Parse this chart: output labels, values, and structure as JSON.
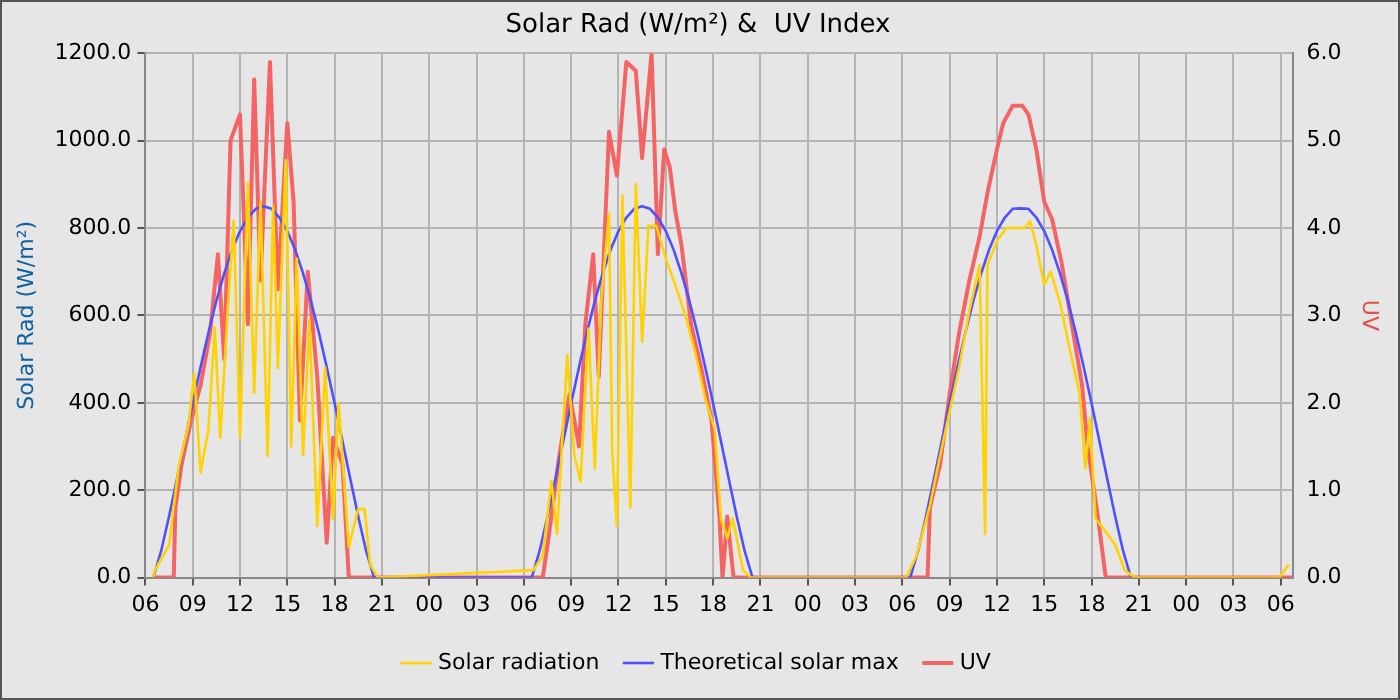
{
  "chart_data": {
    "type": "line",
    "title": "Solar Rad (W/m²) &  UV Index",
    "ylabel": "Solar Rad (W/m²)",
    "y2label": "UV",
    "xlim": [
      6,
      78.75
    ],
    "xticks": [
      {
        "value": 6,
        "label": "06"
      },
      {
        "value": 9,
        "label": "09"
      },
      {
        "value": 12,
        "label": "12"
      },
      {
        "value": 15,
        "label": "15"
      },
      {
        "value": 18,
        "label": "18"
      },
      {
        "value": 21,
        "label": "21"
      },
      {
        "value": 24,
        "label": "00"
      },
      {
        "value": 27,
        "label": "03"
      },
      {
        "value": 30,
        "label": "06"
      },
      {
        "value": 33,
        "label": "09"
      },
      {
        "value": 36,
        "label": "12"
      },
      {
        "value": 39,
        "label": "15"
      },
      {
        "value": 42,
        "label": "18"
      },
      {
        "value": 45,
        "label": "21"
      },
      {
        "value": 48,
        "label": "00"
      },
      {
        "value": 51,
        "label": "03"
      },
      {
        "value": 54,
        "label": "06"
      },
      {
        "value": 57,
        "label": "09"
      },
      {
        "value": 60,
        "label": "12"
      },
      {
        "value": 63,
        "label": "15"
      },
      {
        "value": 66,
        "label": "18"
      },
      {
        "value": 69,
        "label": "21"
      },
      {
        "value": 72,
        "label": "00"
      },
      {
        "value": 75,
        "label": "03"
      },
      {
        "value": 78,
        "label": "06"
      }
    ],
    "ylim": [
      0,
      1200
    ],
    "yticks": [
      {
        "value": 0,
        "label": "0.0"
      },
      {
        "value": 200,
        "label": "200.0"
      },
      {
        "value": 400,
        "label": "400.0"
      },
      {
        "value": 600,
        "label": "600.0"
      },
      {
        "value": 800,
        "label": "800.0"
      },
      {
        "value": 1000,
        "label": "1000.0"
      },
      {
        "value": 1200,
        "label": "1200.0"
      }
    ],
    "y2lim": [
      0,
      6
    ],
    "y2ticks": [
      {
        "value": 0,
        "label": "0.0"
      },
      {
        "value": 1,
        "label": "1.0"
      },
      {
        "value": 2,
        "label": "2.0"
      },
      {
        "value": 3,
        "label": "3.0"
      },
      {
        "value": 4,
        "label": "4.0"
      },
      {
        "value": 5,
        "label": "5.0"
      },
      {
        "value": 6,
        "label": "6.0"
      }
    ],
    "grid": true,
    "legend": "bottom",
    "marker": "none",
    "line_style": "solid",
    "series": [
      {
        "name": "UV",
        "color": "#f46464",
        "axis": "y2",
        "x": [
          6.5,
          7.8,
          7.9,
          8.3,
          8.9,
          9.5,
          10.1,
          10.6,
          11,
          11.4,
          12,
          12.5,
          12.9,
          13.3,
          13.9,
          14.4,
          15,
          15.4,
          15.8,
          16.3,
          16.9,
          17.5,
          17.9,
          18.5,
          18.9,
          31.2,
          31.6,
          32.25,
          32.9,
          33.5,
          33.9,
          34.4,
          34.75,
          35.4,
          35.9,
          36.5,
          37.1,
          37.5,
          38.1,
          38.5,
          38.9,
          39.25,
          39.6,
          40,
          40.6,
          41.25,
          41.9,
          42.4,
          42.6,
          42.9,
          43.3,
          55.6,
          55.75,
          56.4,
          57,
          57.6,
          58.25,
          58.9,
          59.4,
          60,
          60.4,
          61,
          61.6,
          62,
          62.5,
          63,
          63.5,
          64.1,
          64.75,
          65.4,
          65.75,
          66.4,
          66.9,
          78.75
        ],
        "values": [
          0,
          0,
          0.8,
          1.3,
          1.8,
          2.2,
          2.8,
          3.7,
          2.5,
          5,
          5.3,
          2.9,
          5.7,
          3.4,
          5.9,
          3.3,
          5.2,
          4.3,
          1.8,
          3.5,
          2.3,
          0.4,
          1.6,
          1.3,
          0,
          0,
          0.5,
          1.4,
          2.1,
          1.5,
          2.9,
          3.7,
          2.3,
          5.1,
          4.6,
          5.9,
          5.8,
          4.8,
          6,
          3.7,
          4.9,
          4.7,
          4.2,
          3.8,
          2.9,
          2.4,
          1.8,
          0.7,
          0,
          0.7,
          0,
          0,
          0.8,
          1.3,
          2.1,
          2.8,
          3.4,
          3.9,
          4.4,
          4.9,
          5.2,
          5.4,
          5.4,
          5.3,
          4.9,
          4.3,
          4.1,
          3.6,
          2.9,
          2.2,
          1.5,
          0.7,
          0,
          0
        ]
      },
      {
        "name": "Theoretical solar max",
        "color": "#5050ff",
        "x": [
          6.5,
          7,
          7.5,
          8,
          8.5,
          9,
          9.5,
          10,
          10.5,
          11,
          11.5,
          12,
          12.5,
          13,
          13.5,
          14,
          14.5,
          15,
          15.5,
          16,
          16.5,
          17,
          17.5,
          18,
          18.5,
          19,
          19.5,
          20,
          20.5,
          30.5,
          31,
          31.5,
          32,
          32.5,
          33,
          33.5,
          34,
          34.5,
          35,
          35.5,
          36,
          36.5,
          37,
          37.5,
          38,
          38.5,
          39,
          39.5,
          40,
          40.5,
          41,
          41.5,
          42,
          42.5,
          43,
          43.5,
          44,
          44.5,
          54.5,
          55,
          55.5,
          56,
          56.5,
          57,
          57.5,
          58,
          58.5,
          59,
          59.5,
          60,
          60.5,
          61,
          61.5,
          62,
          62.5,
          63,
          63.5,
          64,
          64.5,
          65,
          65.5,
          66,
          66.5,
          67,
          67.5,
          68,
          68.5
        ],
        "values": [
          0,
          61,
          140,
          225,
          312,
          399,
          482,
          561,
          633,
          696,
          750,
          793,
          824,
          844,
          850,
          844,
          824,
          793,
          750,
          696,
          633,
          561,
          482,
          399,
          312,
          225,
          140,
          61,
          0,
          0,
          61,
          140,
          225,
          312,
          399,
          482,
          561,
          633,
          696,
          750,
          793,
          824,
          844,
          850,
          844,
          824,
          793,
          750,
          696,
          633,
          561,
          482,
          399,
          312,
          225,
          140,
          61,
          0,
          0,
          61,
          140,
          225,
          312,
          399,
          482,
          561,
          633,
          696,
          750,
          793,
          824,
          844,
          845,
          844,
          824,
          793,
          750,
          696,
          633,
          561,
          482,
          399,
          312,
          225,
          140,
          61,
          0
        ]
      },
      {
        "name": "Solar radiation",
        "color": "#ffd200",
        "x": [
          6.5,
          6.6,
          7.5,
          8.1,
          8.75,
          9.1,
          9.5,
          10,
          10.4,
          10.75,
          11.25,
          11.6,
          12,
          12.5,
          12.9,
          13.3,
          13.75,
          14.1,
          14.4,
          14.9,
          15.25,
          15.6,
          16,
          16.4,
          16.9,
          17.4,
          17.9,
          18.25,
          18.9,
          19.5,
          19.9,
          20.25,
          20.75,
          30.6,
          31.2,
          31.75,
          32.1,
          32.75,
          33.2,
          33.6,
          34.1,
          34.5,
          34.9,
          35.4,
          35.6,
          35.9,
          36.25,
          36.75,
          37.1,
          37.5,
          37.9,
          38.4,
          39,
          39.6,
          40.25,
          40.9,
          41.5,
          42.1,
          42.5,
          42.9,
          43.25,
          43.9,
          44.4,
          54.25,
          54.9,
          55.75,
          56.4,
          57,
          57.6,
          58.25,
          58.9,
          59.25,
          59.4,
          60,
          60.6,
          61.1,
          61.75,
          62.1,
          62.5,
          63,
          63.4,
          64,
          64.6,
          65.25,
          65.6,
          65.9,
          66.25,
          66.9,
          67.5,
          68.1,
          68.75,
          77.9,
          78.5
        ],
        "values": [
          0,
          17,
          74,
          250,
          353,
          467,
          240,
          340,
          572,
          320,
          628,
          816,
          320,
          903,
          423,
          860,
          279,
          850,
          480,
          955,
          300,
          730,
          280,
          590,
          118,
          480,
          135,
          400,
          70,
          157,
          157,
          30,
          0,
          17,
          50,
          222,
          100,
          510,
          280,
          220,
          570,
          250,
          630,
          833,
          290,
          118,
          875,
          160,
          900,
          540,
          805,
          805,
          730,
          670,
          600,
          510,
          410,
          340,
          135,
          90,
          135,
          17,
          0,
          0,
          50,
          165,
          280,
          380,
          480,
          610,
          715,
          100,
          715,
          770,
          800,
          800,
          800,
          815,
          760,
          670,
          700,
          630,
          525,
          420,
          250,
          365,
          135,
          105,
          75,
          17,
          0,
          0,
          30
        ]
      }
    ]
  }
}
